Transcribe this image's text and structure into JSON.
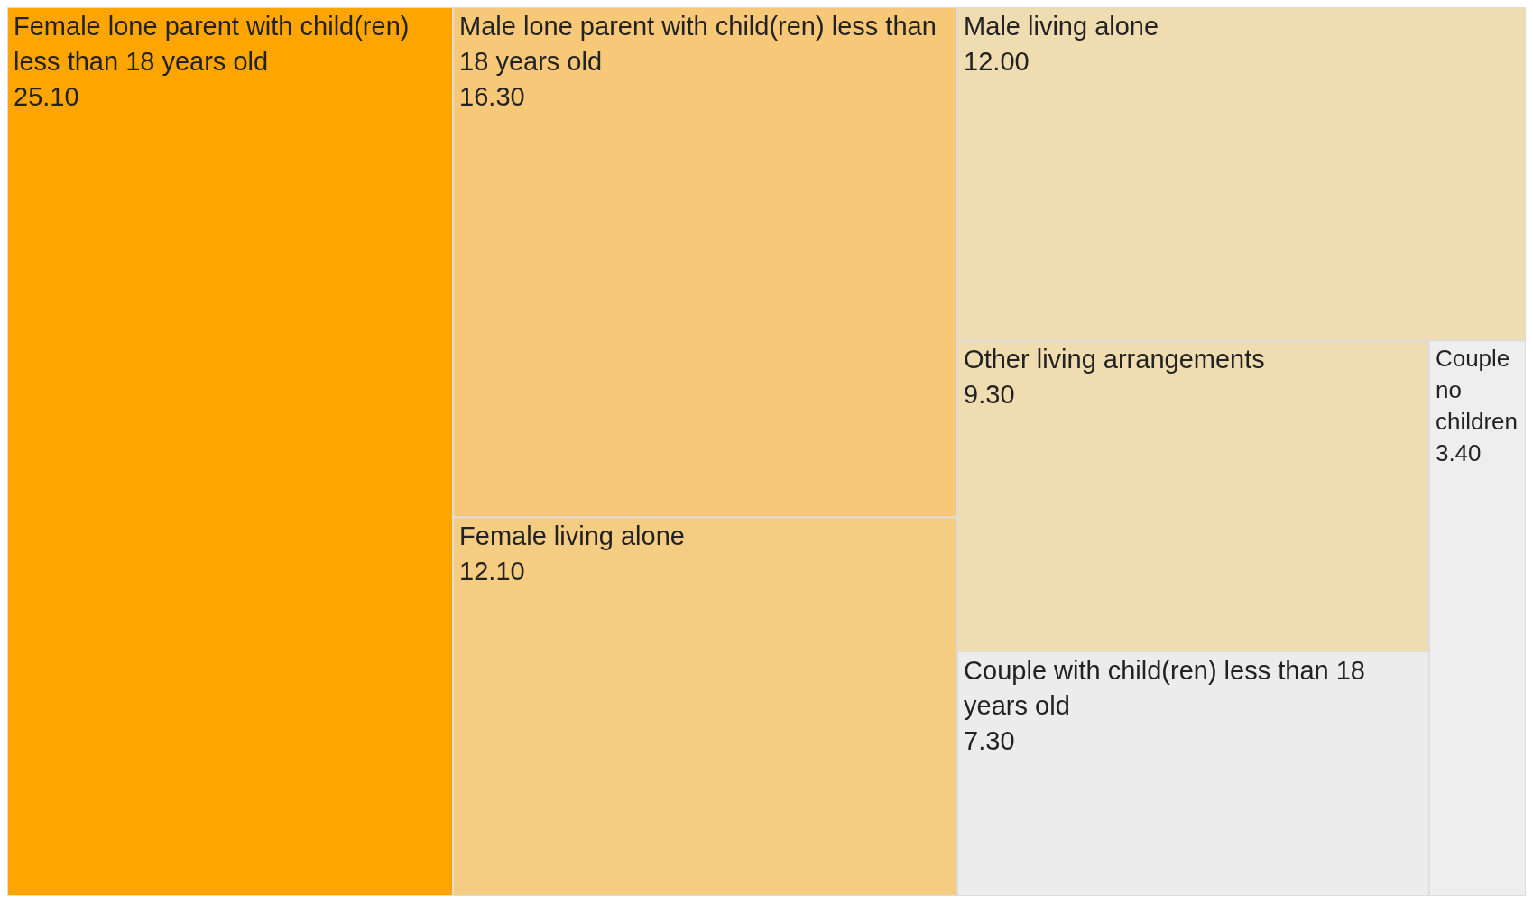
{
  "chart_data": {
    "type": "other",
    "categories": [
      "Female lone parent with child(ren) less than 18 years old",
      "Male lone parent with child(ren) less than 18 years old",
      "Female living alone",
      "Male living alone",
      "Other living arrangements",
      "Couple with child(ren) less than 18 years old",
      "Couple no children"
    ],
    "values": [
      25.1,
      16.3,
      12.1,
      12.0,
      9.3,
      7.3,
      3.4
    ],
    "value_labels": [
      "25.10",
      "16.30",
      "12.10",
      "12.00",
      "9.30",
      "7.30",
      "3.40"
    ],
    "colors": [
      "#ffa500",
      "#f6c878",
      "#f5cd82",
      "#efdcb0",
      "#efdcb0",
      "#ececec",
      "#eeeeee"
    ]
  }
}
